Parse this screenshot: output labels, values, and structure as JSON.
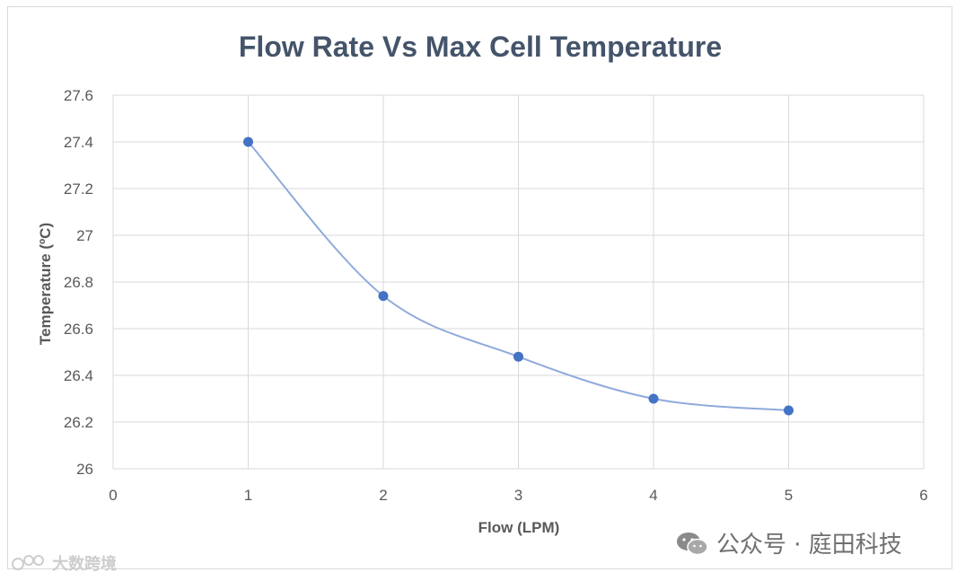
{
  "chart_data": {
    "type": "line",
    "title": "Flow Rate Vs Max Cell Temperature",
    "xlabel": "Flow (LPM)",
    "ylabel": "Temperature (ºC)",
    "xlim": [
      0,
      6
    ],
    "ylim": [
      26,
      27.6
    ],
    "x_ticks": [
      "0",
      "1",
      "2",
      "3",
      "4",
      "5",
      "6"
    ],
    "y_ticks": [
      "26",
      "26.2",
      "26.4",
      "26.6",
      "26.8",
      "27",
      "27.2",
      "27.4",
      "27.6"
    ],
    "series": [
      {
        "name": "Max Cell Temperature",
        "x": [
          1,
          2,
          3,
          4,
          5
        ],
        "values": [
          27.4,
          26.74,
          26.48,
          26.3,
          26.25
        ],
        "smooth": true,
        "markers": true
      }
    ],
    "grid": true,
    "legend": "none"
  },
  "watermarks": {
    "left_text": "大数跨境",
    "right_text": "公众号 · 庭田科技"
  },
  "colors": {
    "line": "#8faadc",
    "marker": "#4472c4",
    "grid": "#d9d9d9",
    "title": "#44546a"
  }
}
